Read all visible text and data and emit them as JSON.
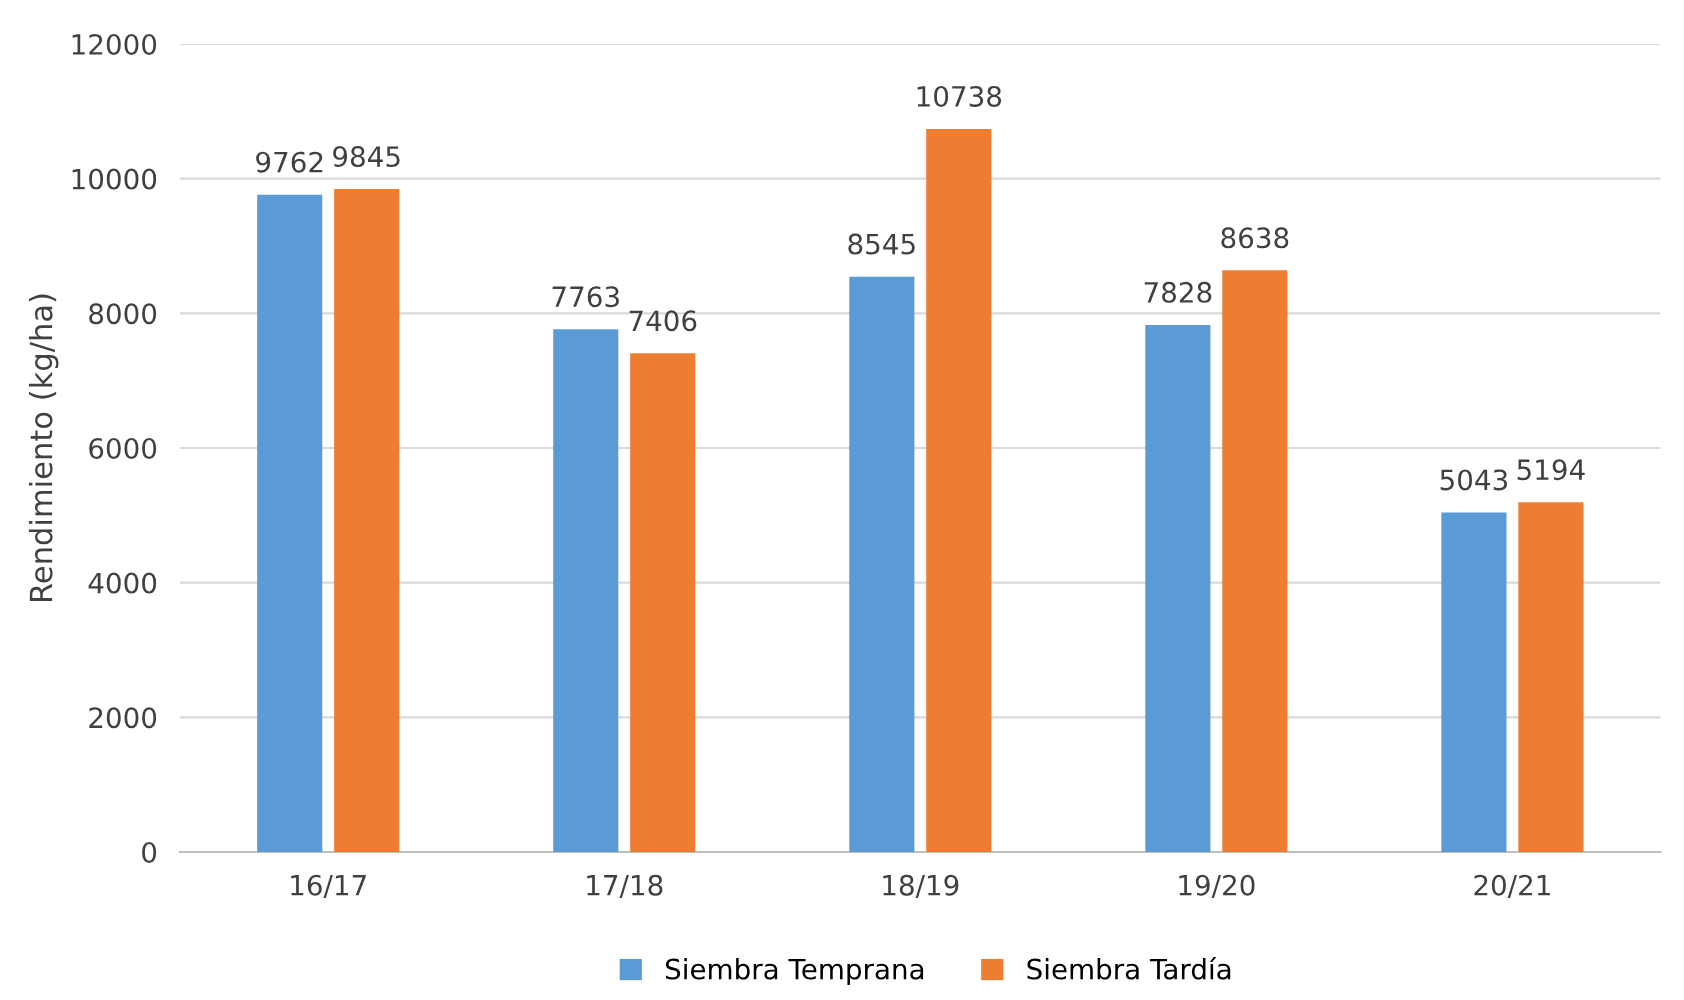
{
  "chart_data": {
    "type": "bar",
    "ylabel": "Rendimiento (kg/ha)",
    "categories": [
      "16/17",
      "17/18",
      "18/19",
      "19/20",
      "20/21"
    ],
    "series": [
      {
        "name": "Siembra Temprana",
        "color": "#5b9bd5",
        "values": [
          9762,
          7763,
          8545,
          7828,
          5043
        ]
      },
      {
        "name": "Siembra Tardía",
        "color": "#ed7d31",
        "values": [
          9845,
          7406,
          10738,
          8638,
          5194
        ]
      }
    ],
    "ylim": [
      0,
      12000
    ],
    "yticks": [
      0,
      2000,
      4000,
      6000,
      8000,
      10000,
      12000
    ],
    "grid": "y",
    "legend": "bottom",
    "data_labels": true
  }
}
